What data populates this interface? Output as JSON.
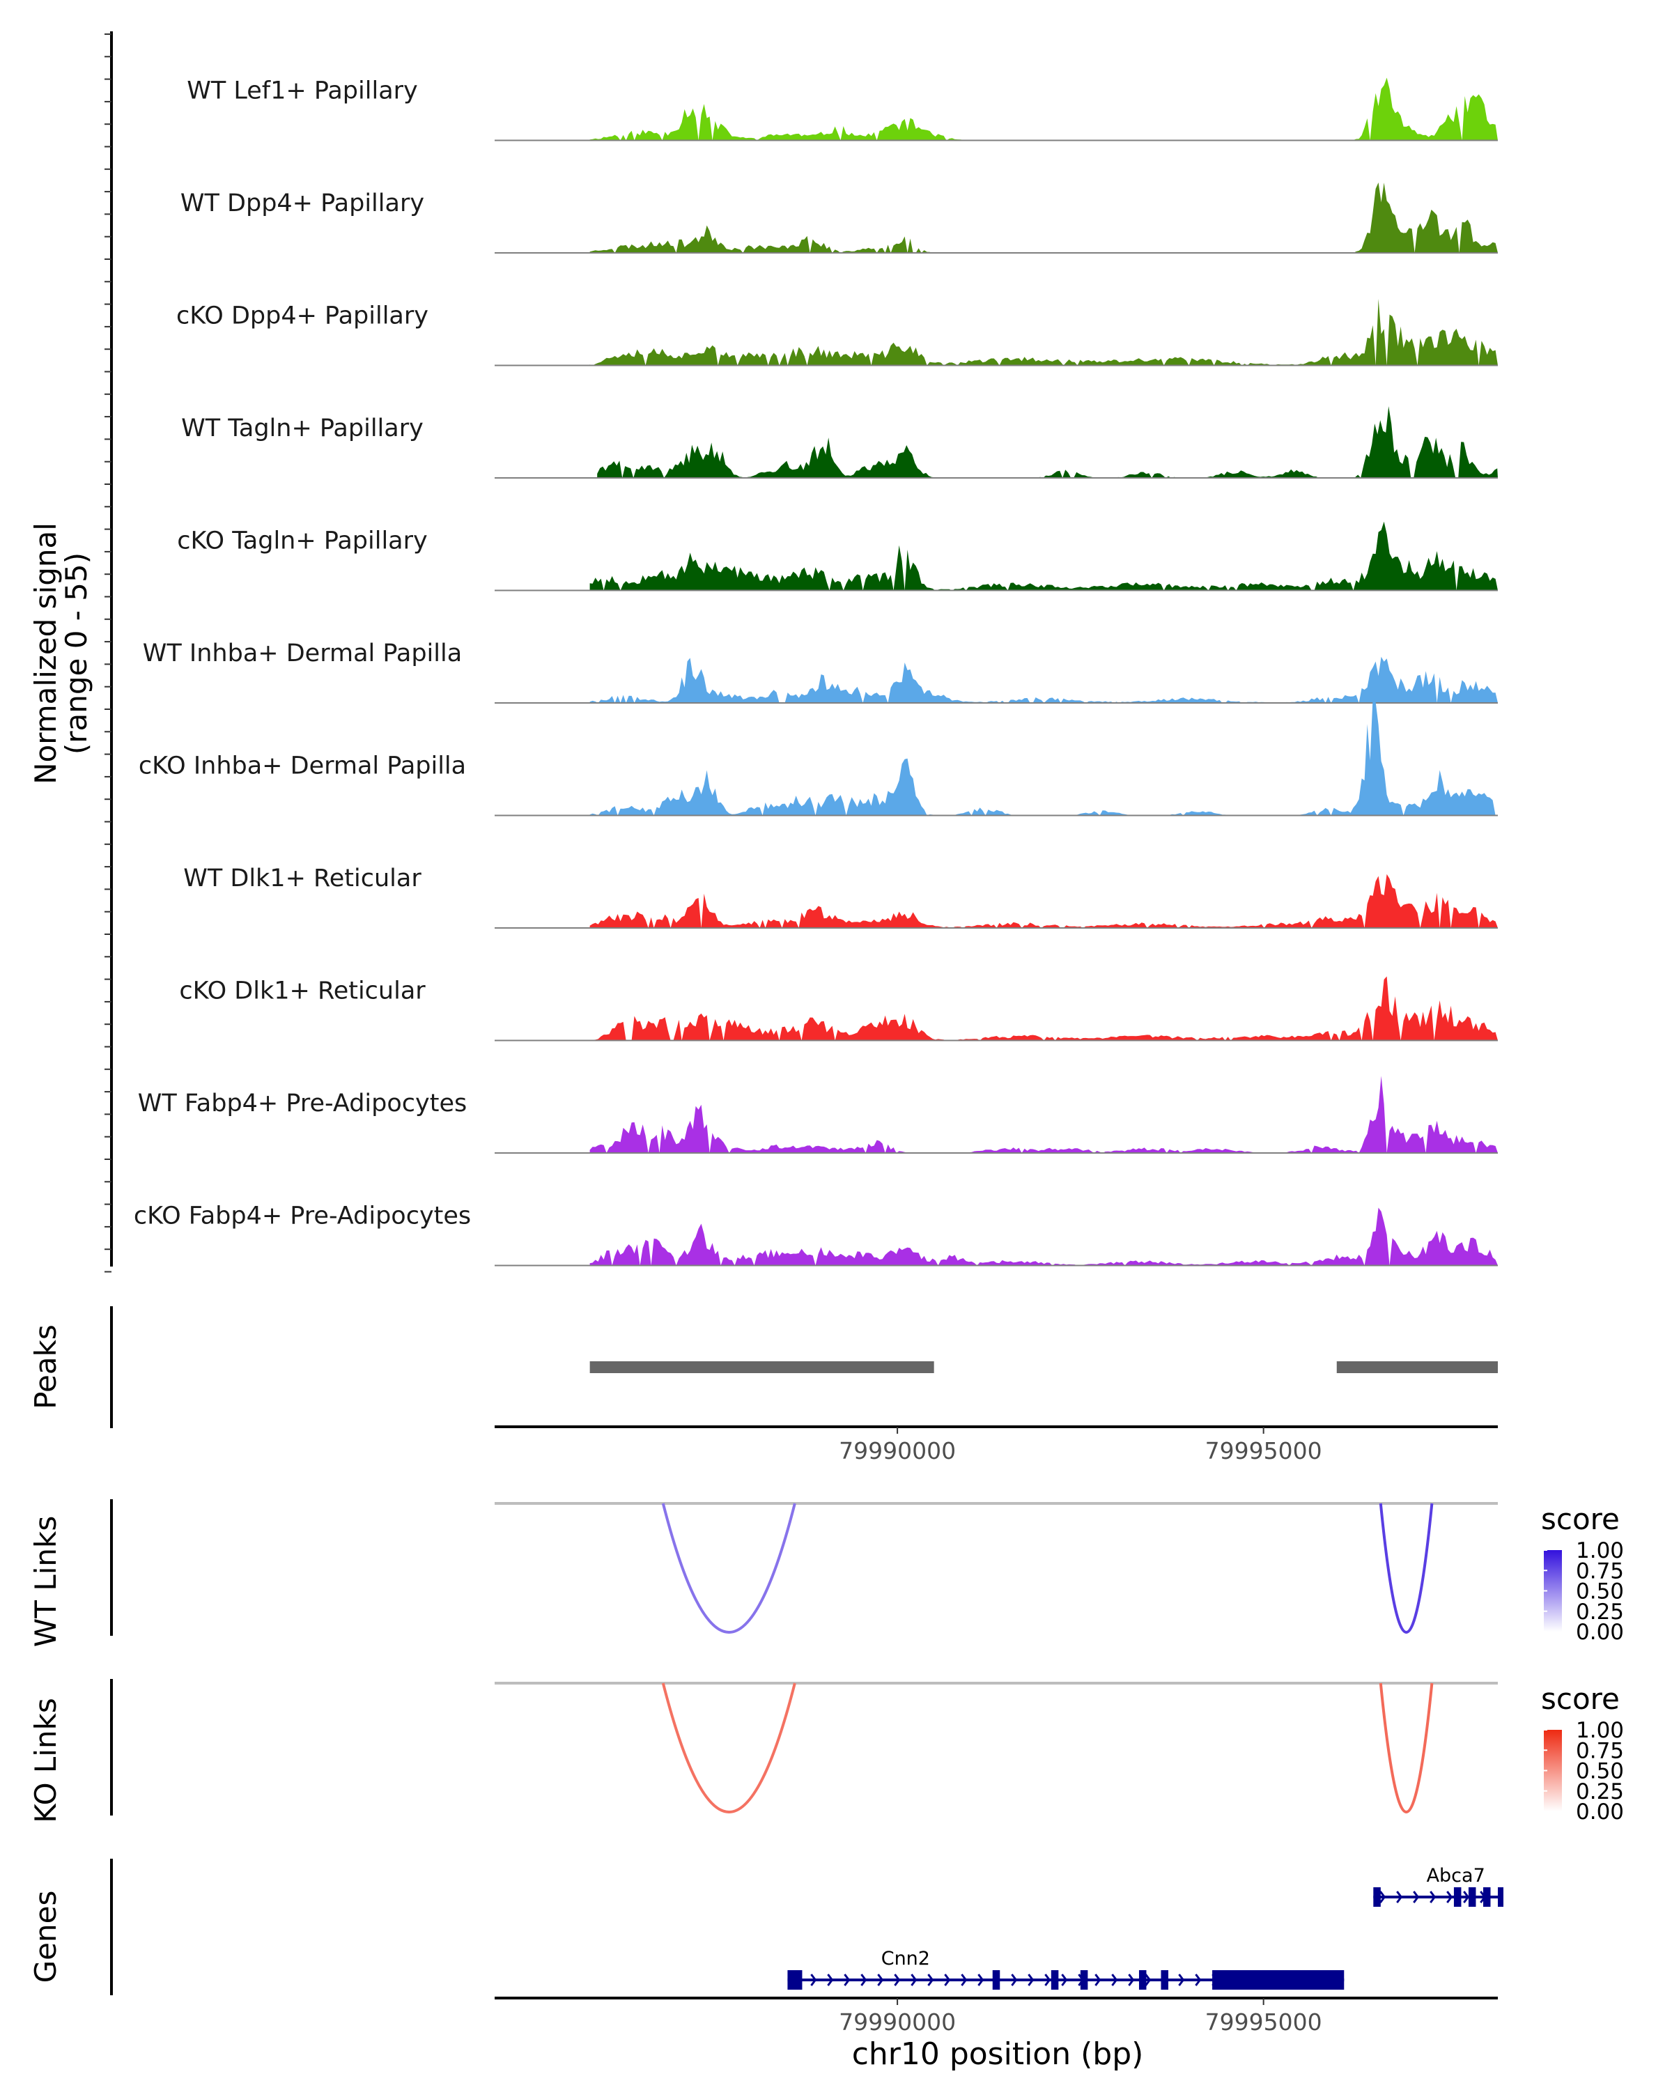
{
  "chart_data": {
    "type": "area",
    "ylabel_line1": "Normalized signal",
    "ylabel_line2": "(range 0 - 55)",
    "xlabel": "chr10 position (bp)",
    "chromosome": "chr10",
    "x_range": [
      79984500,
      79998200
    ],
    "y_range": [
      0,
      55
    ],
    "tracks": [
      {
        "name": "WT Lef1+ Papillary",
        "color": "#6dd20b",
        "seed": 11,
        "start": 79985800,
        "end": 79998200,
        "peaks": [
          [
            79986500,
            4,
            350
          ],
          [
            79987200,
            11,
            150
          ],
          [
            79987400,
            8,
            230
          ],
          [
            79988500,
            3,
            300
          ],
          [
            79989200,
            5,
            180
          ],
          [
            79990100,
            8,
            300
          ],
          [
            79996600,
            24,
            120
          ],
          [
            79996900,
            8,
            170
          ],
          [
            79997600,
            9,
            170
          ],
          [
            79997900,
            16,
            160
          ],
          [
            79998300,
            4,
            280
          ]
        ]
      },
      {
        "name": "WT Dpp4+ Papillary",
        "color": "#4f8a10",
        "seed": 23,
        "start": 79985800,
        "end": 79998200,
        "peaks": [
          [
            79986300,
            3,
            300
          ],
          [
            79986900,
            5,
            220
          ],
          [
            79987400,
            9,
            150
          ],
          [
            79988100,
            3,
            300
          ],
          [
            79988800,
            6,
            200
          ],
          [
            79989700,
            3,
            200
          ],
          [
            79990100,
            6,
            140
          ],
          [
            79996600,
            28,
            120
          ],
          [
            79996900,
            9,
            180
          ],
          [
            79997300,
            17,
            130
          ],
          [
            79997700,
            14,
            130
          ],
          [
            79998100,
            4,
            200
          ]
        ]
      },
      {
        "name": "cKO Dpp4+ Papillary",
        "color": "#4f8a10",
        "seed": 37,
        "start": 79985800,
        "end": 79998200,
        "peaks": [
          [
            79986300,
            6,
            230
          ],
          [
            79986800,
            6,
            230
          ],
          [
            79987400,
            9,
            180
          ],
          [
            79988100,
            5,
            300
          ],
          [
            79988800,
            7,
            250
          ],
          [
            79989500,
            5,
            300
          ],
          [
            79990100,
            9,
            180
          ],
          [
            79991700,
            3,
            700
          ],
          [
            79993800,
            3,
            700
          ],
          [
            79996000,
            5,
            240
          ],
          [
            79996600,
            22,
            150
          ],
          [
            79996950,
            10,
            200
          ],
          [
            79997400,
            11,
            220
          ],
          [
            79997800,
            8,
            230
          ],
          [
            79998300,
            4,
            300
          ]
        ]
      },
      {
        "name": "WT Tagln+ Papillary",
        "color": "#015a01",
        "seed": 41,
        "start": 79985900,
        "end": 79998200,
        "peaks": [
          [
            79986100,
            7,
            140
          ],
          [
            79986600,
            5,
            200
          ],
          [
            79987200,
            11,
            160
          ],
          [
            79987500,
            14,
            130
          ],
          [
            79988500,
            6,
            250
          ],
          [
            79989000,
            17,
            120
          ],
          [
            79989700,
            6,
            200
          ],
          [
            79990100,
            12,
            150
          ],
          [
            79992300,
            3,
            180
          ],
          [
            79993400,
            3,
            180
          ],
          [
            79994600,
            3,
            180
          ],
          [
            79995400,
            3,
            180
          ],
          [
            79996600,
            32,
            120
          ],
          [
            79996900,
            8,
            160
          ],
          [
            79997300,
            18,
            120
          ],
          [
            79997700,
            14,
            120
          ],
          [
            79998300,
            4,
            200
          ]
        ]
      },
      {
        "name": "cKO Tagln+ Papillary",
        "color": "#015a01",
        "seed": 53,
        "start": 79985800,
        "end": 79998200,
        "peaks": [
          [
            79986000,
            6,
            250
          ],
          [
            79986700,
            10,
            180
          ],
          [
            79987200,
            12,
            160
          ],
          [
            79987600,
            10,
            200
          ],
          [
            79988100,
            6,
            300
          ],
          [
            79988800,
            8,
            250
          ],
          [
            79989600,
            6,
            300
          ],
          [
            79990100,
            16,
            140
          ],
          [
            79991600,
            3,
            500
          ],
          [
            79993300,
            3,
            500
          ],
          [
            79994900,
            3,
            500
          ],
          [
            79996000,
            5,
            250
          ],
          [
            79996600,
            20,
            150
          ],
          [
            79996900,
            11,
            200
          ],
          [
            79997400,
            14,
            160
          ],
          [
            79997800,
            7,
            230
          ],
          [
            79998300,
            4,
            250
          ]
        ]
      },
      {
        "name": "WT Inhba+ Dermal Papilla",
        "color": "#5ba8e8",
        "seed": 67,
        "start": 79985800,
        "end": 79998200,
        "peaks": [
          [
            79986300,
            3,
            300
          ],
          [
            79987200,
            16,
            130
          ],
          [
            79987600,
            4,
            230
          ],
          [
            79988400,
            5,
            250
          ],
          [
            79989000,
            10,
            160
          ],
          [
            79989500,
            6,
            200
          ],
          [
            79990100,
            14,
            140
          ],
          [
            79990500,
            4,
            200
          ],
          [
            79992000,
            2,
            500
          ],
          [
            79994000,
            2,
            500
          ],
          [
            79996000,
            3,
            300
          ],
          [
            79996600,
            20,
            140
          ],
          [
            79996950,
            6,
            200
          ],
          [
            79997300,
            11,
            160
          ],
          [
            79997800,
            8,
            180
          ],
          [
            79998100,
            4,
            200
          ]
        ]
      },
      {
        "name": "cKO Inhba+ Dermal Papilla",
        "color": "#5ba8e8",
        "seed": 79,
        "start": 79985800,
        "end": 79998200,
        "peaks": [
          [
            79986300,
            4,
            250
          ],
          [
            79987000,
            11,
            160
          ],
          [
            79987400,
            17,
            130
          ],
          [
            79988200,
            5,
            200
          ],
          [
            79988700,
            7,
            200
          ],
          [
            79989200,
            9,
            160
          ],
          [
            79989700,
            8,
            200
          ],
          [
            79990100,
            20,
            130
          ],
          [
            79991200,
            3,
            200
          ],
          [
            79992800,
            2,
            200
          ],
          [
            79994100,
            2,
            200
          ],
          [
            79995900,
            3,
            200
          ],
          [
            79996500,
            46,
            110
          ],
          [
            79996900,
            5,
            200
          ],
          [
            79997400,
            16,
            140
          ],
          [
            79997800,
            9,
            180
          ],
          [
            79998100,
            4,
            200
          ]
        ]
      },
      {
        "name": "WT Dlk1+ Reticular",
        "color": "#f52a2a",
        "seed": 83,
        "start": 79985800,
        "end": 79998200,
        "peaks": [
          [
            79986200,
            5,
            250
          ],
          [
            79986700,
            6,
            200
          ],
          [
            79987300,
            14,
            150
          ],
          [
            79988200,
            3,
            300
          ],
          [
            79988900,
            8,
            220
          ],
          [
            79989600,
            3,
            300
          ],
          [
            79990100,
            6,
            200
          ],
          [
            79991600,
            2,
            500
          ],
          [
            79993400,
            2,
            500
          ],
          [
            79995400,
            2,
            500
          ],
          [
            79996000,
            4,
            250
          ],
          [
            79996600,
            18,
            150
          ],
          [
            79996950,
            8,
            200
          ],
          [
            79997400,
            12,
            170
          ],
          [
            79997800,
            7,
            200
          ],
          [
            79998300,
            3,
            250
          ]
        ]
      },
      {
        "name": "cKO Dlk1+ Reticular",
        "color": "#f52a2a",
        "seed": 97,
        "start": 79985800,
        "end": 79998200,
        "peaks": [
          [
            79986300,
            10,
            180
          ],
          [
            79986800,
            8,
            200
          ],
          [
            79987300,
            10,
            180
          ],
          [
            79987800,
            7,
            200
          ],
          [
            79988400,
            4,
            300
          ],
          [
            79988900,
            7,
            230
          ],
          [
            79989700,
            7,
            230
          ],
          [
            79990100,
            9,
            180
          ],
          [
            79991700,
            2,
            500
          ],
          [
            79993400,
            2,
            500
          ],
          [
            79995000,
            2,
            500
          ],
          [
            79996000,
            4,
            250
          ],
          [
            79996600,
            24,
            140
          ],
          [
            79996950,
            10,
            180
          ],
          [
            79997400,
            13,
            170
          ],
          [
            79997800,
            8,
            200
          ],
          [
            79998300,
            4,
            250
          ]
        ]
      },
      {
        "name": "WT Fabp4+ Pre-Adipocytes",
        "color": "#a930e5",
        "seed": 101,
        "start": 79985800,
        "end": 79998200,
        "peaks": [
          [
            79986000,
            3,
            200
          ],
          [
            79986400,
            12,
            160
          ],
          [
            79986800,
            9,
            180
          ],
          [
            79987300,
            17,
            130
          ],
          [
            79987600,
            4,
            200
          ],
          [
            79988400,
            3,
            250
          ],
          [
            79989000,
            3,
            250
          ],
          [
            79989700,
            5,
            180
          ],
          [
            79991500,
            2,
            300
          ],
          [
            79992300,
            2,
            300
          ],
          [
            79993400,
            2,
            300
          ],
          [
            79994300,
            2,
            300
          ],
          [
            79995800,
            3,
            250
          ],
          [
            79996600,
            26,
            120
          ],
          [
            79996950,
            6,
            180
          ],
          [
            79997300,
            10,
            150
          ],
          [
            79997600,
            5,
            200
          ],
          [
            79998000,
            4,
            200
          ]
        ]
      },
      {
        "name": "cKO Fabp4+ Pre-Adipocytes",
        "color": "#a930e5",
        "seed": 113,
        "start": 79985800,
        "end": 79998200,
        "peaks": [
          [
            79986200,
            7,
            220
          ],
          [
            79986700,
            9,
            200
          ],
          [
            79987300,
            14,
            150
          ],
          [
            79987700,
            4,
            200
          ],
          [
            79988300,
            6,
            230
          ],
          [
            79988900,
            8,
            200
          ],
          [
            79989500,
            5,
            230
          ],
          [
            79990100,
            9,
            170
          ],
          [
            79990700,
            4,
            200
          ],
          [
            79991600,
            2,
            400
          ],
          [
            79993300,
            2,
            400
          ],
          [
            79994900,
            2,
            400
          ],
          [
            79996000,
            4,
            250
          ],
          [
            79996600,
            20,
            140
          ],
          [
            79996950,
            5,
            200
          ],
          [
            79997400,
            12,
            150
          ],
          [
            79997800,
            9,
            170
          ],
          [
            79998100,
            4,
            200
          ]
        ]
      }
    ],
    "peaks_track": {
      "label": "Peaks",
      "color": "#666666",
      "regions": [
        [
          79985800,
          79990500
        ],
        [
          79996000,
          79998500
        ]
      ]
    },
    "x_ticks": [
      79990000,
      79995000
    ],
    "x_tick_labels": [
      "79990000",
      "79995000"
    ],
    "links": [
      {
        "label": "WT Links",
        "legend_title": "score",
        "color_high": "#3311dd",
        "arcs": [
          {
            "start": 79986800,
            "end": 79988600,
            "score": 0.45
          },
          {
            "start": 79996600,
            "end": 79997300,
            "score": 0.75
          }
        ]
      },
      {
        "label": "KO Links",
        "legend_title": "score",
        "color_high": "#ee2a12",
        "arcs": [
          {
            "start": 79986800,
            "end": 79988600,
            "score": 0.55
          },
          {
            "start": 79996600,
            "end": 79997300,
            "score": 0.6
          }
        ]
      }
    ],
    "legend_ticks": [
      "1.00",
      "0.75",
      "0.50",
      "0.25",
      "0.00"
    ],
    "genes_track": {
      "label": "Genes",
      "color": "#00008b",
      "genes": [
        {
          "name": "Cnn2",
          "start": 79988500,
          "end": 79996100,
          "row": 1,
          "exons": [
            [
              79988500,
              79988700
            ],
            [
              79991300,
              79991400
            ],
            [
              79992100,
              79992200
            ],
            [
              79992500,
              79992600
            ],
            [
              79993300,
              79993400
            ],
            [
              79993600,
              79993700
            ],
            [
              79994300,
              79996100
            ]
          ]
        },
        {
          "name": "Abca7",
          "start": 79996500,
          "end": 79998600,
          "row": 0,
          "exons": [
            [
              79996500,
              79996600
            ],
            [
              79997600,
              79997700
            ],
            [
              79997800,
              79997900
            ],
            [
              79998000,
              79998100
            ],
            [
              79998200,
              79998400
            ],
            [
              79998450,
              79998550
            ]
          ]
        }
      ]
    }
  }
}
